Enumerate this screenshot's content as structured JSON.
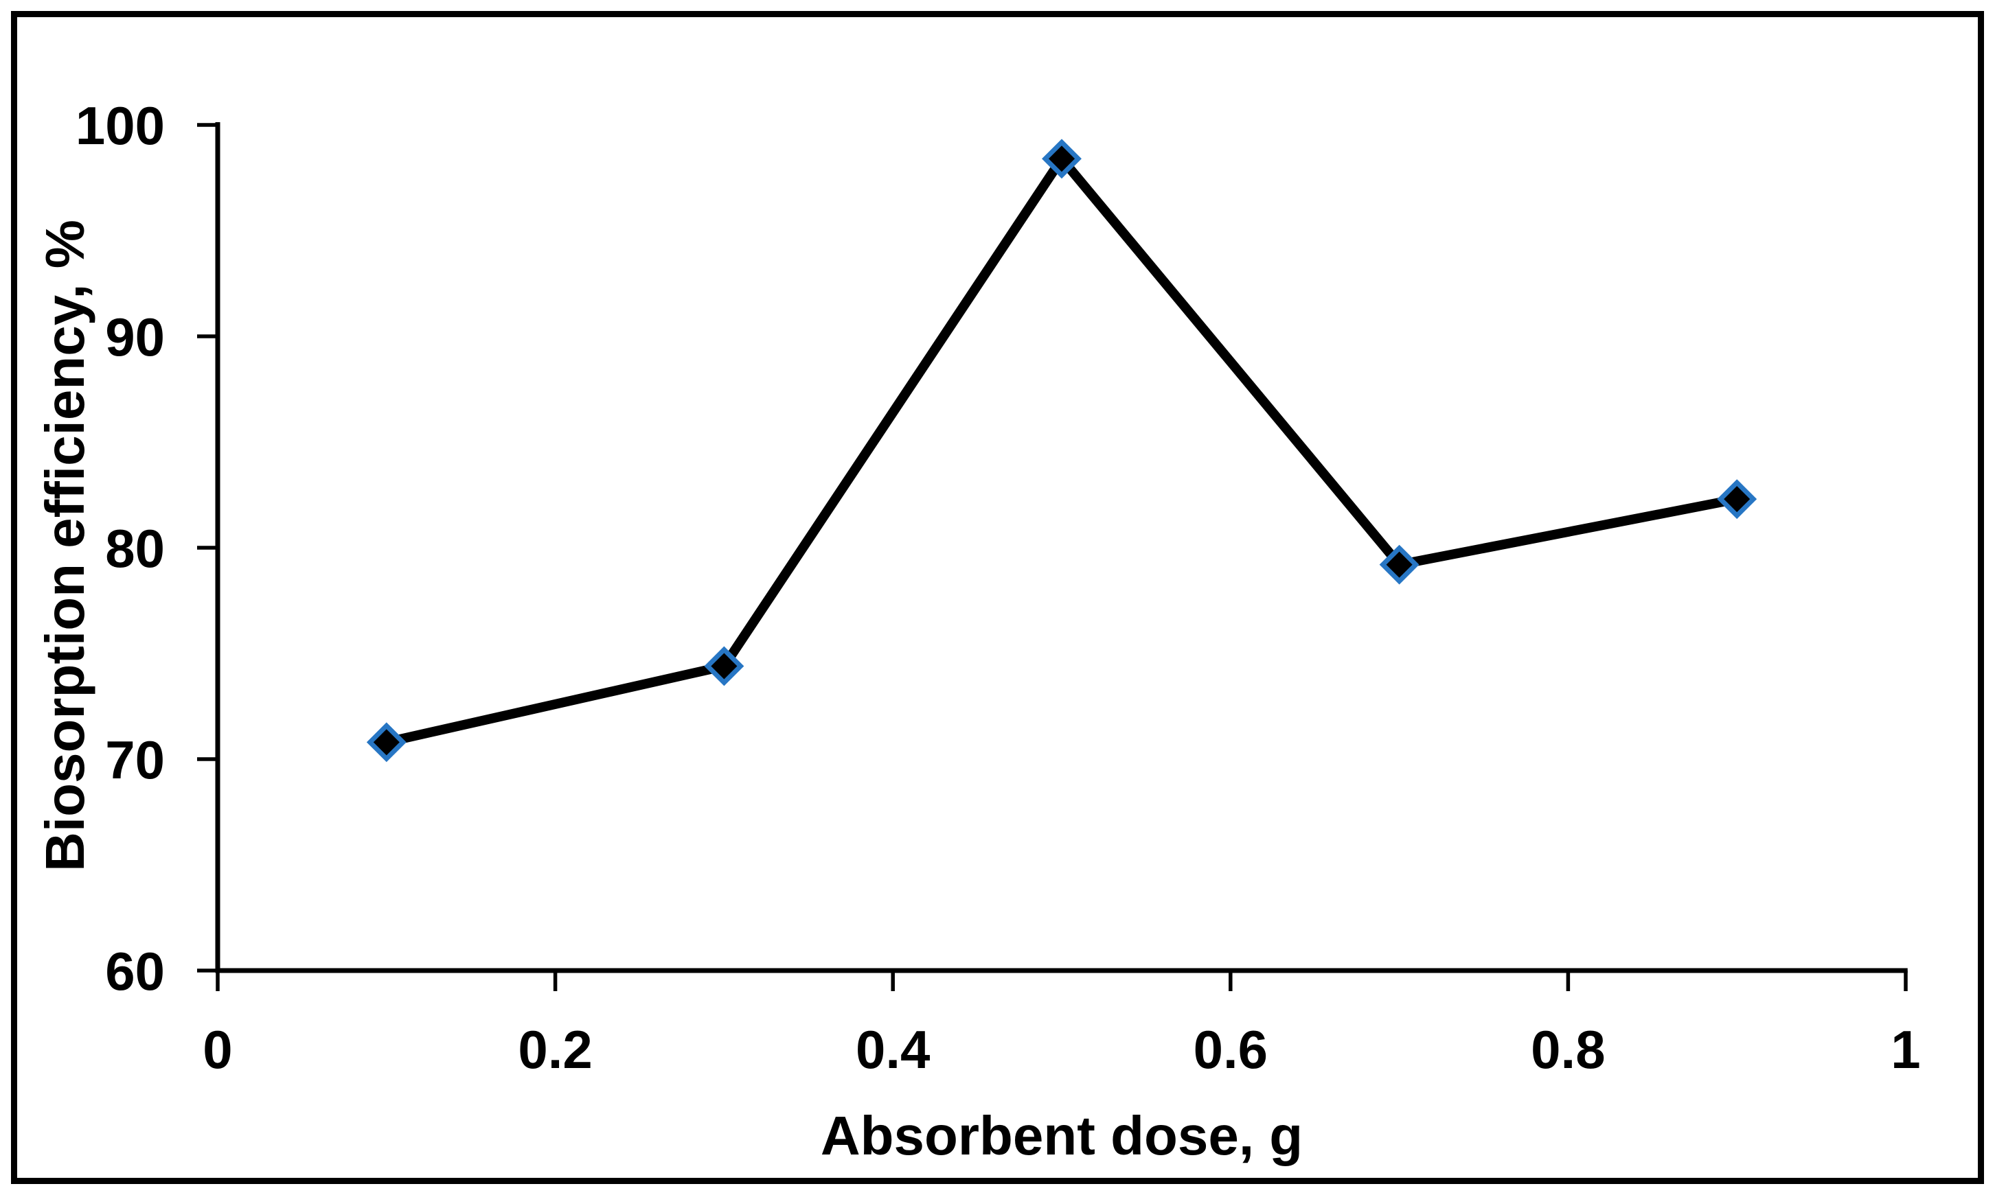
{
  "chart_data": {
    "type": "line",
    "title": "",
    "xlabel": "Absorbent dose, g",
    "ylabel": "Biosorption efficiency, %",
    "xlim": [
      0,
      1
    ],
    "ylim": [
      60,
      100
    ],
    "xticks": {
      "values": [
        0,
        0.2,
        0.4,
        0.6,
        0.8,
        1
      ],
      "labels": [
        "0",
        "0.2",
        "0.4",
        "0.6",
        "0.8",
        "1"
      ]
    },
    "yticks": {
      "values": [
        60,
        70,
        80,
        90,
        100
      ],
      "labels": [
        "60",
        "70",
        "80",
        "90",
        "100"
      ]
    },
    "grid": false,
    "legend": "none",
    "series": [
      {
        "name": "Biosorption efficiency",
        "x": [
          0.1,
          0.3,
          0.5,
          0.7,
          0.9
        ],
        "y": [
          70.8,
          74.4,
          98.4,
          79.2,
          82.3
        ],
        "marker": "diamond",
        "line_color": "#000000",
        "marker_fill": "#000000",
        "marker_border_color": "#2776C4"
      }
    ]
  },
  "colors": {
    "background": "#FFFFFF",
    "frame_border": "#000000",
    "axis": "#000000",
    "text": "#000000",
    "marker_accent_blue": "#2776C4"
  }
}
